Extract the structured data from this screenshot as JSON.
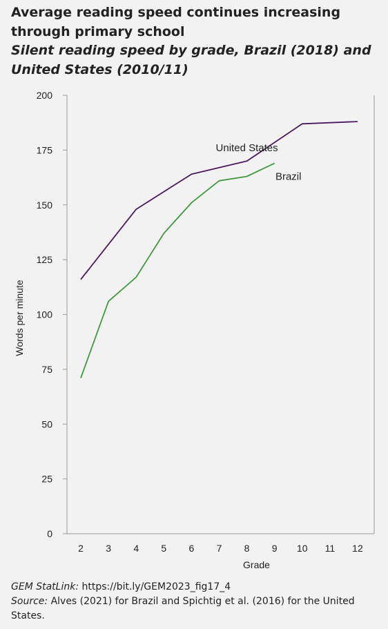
{
  "title": "Average reading speed continues increasing through primary school",
  "subtitle": "Silent reading speed by grade, Brazil (2018) and United States (2010/11)",
  "footer": {
    "statlink_label": "GEM StatLink:",
    "statlink_url": "https://bit.ly/GEM2023_fig17_4",
    "source_label": "Source:",
    "source_text": "Alves (2021) for Brazil and Spichtig et al. (2016) for the United States."
  },
  "colors": {
    "background": "#f2f2f2",
    "united_states": "#4a1a5c",
    "brazil": "#3f9a3f",
    "axis": "#999999"
  },
  "chart_data": {
    "type": "line",
    "title": "",
    "xlabel": "Grade",
    "ylabel": "Words per minute",
    "x": [
      2,
      3,
      4,
      5,
      6,
      7,
      8,
      9,
      10,
      11,
      12
    ],
    "ylim": [
      0,
      200
    ],
    "yticks": [
      0,
      25,
      50,
      75,
      100,
      125,
      150,
      175,
      200
    ],
    "grid": false,
    "series": [
      {
        "name": "United States",
        "color": "#4a1a5c",
        "x": [
          2,
          4,
          6,
          8,
          10,
          12
        ],
        "values": [
          116,
          148,
          164,
          170,
          187,
          188
        ]
      },
      {
        "name": "Brazil",
        "color": "#3f9a3f",
        "x": [
          2,
          3,
          4,
          5,
          6,
          7,
          8,
          9
        ],
        "values": [
          71,
          106,
          117,
          137,
          151,
          161,
          163,
          169
        ]
      }
    ]
  }
}
